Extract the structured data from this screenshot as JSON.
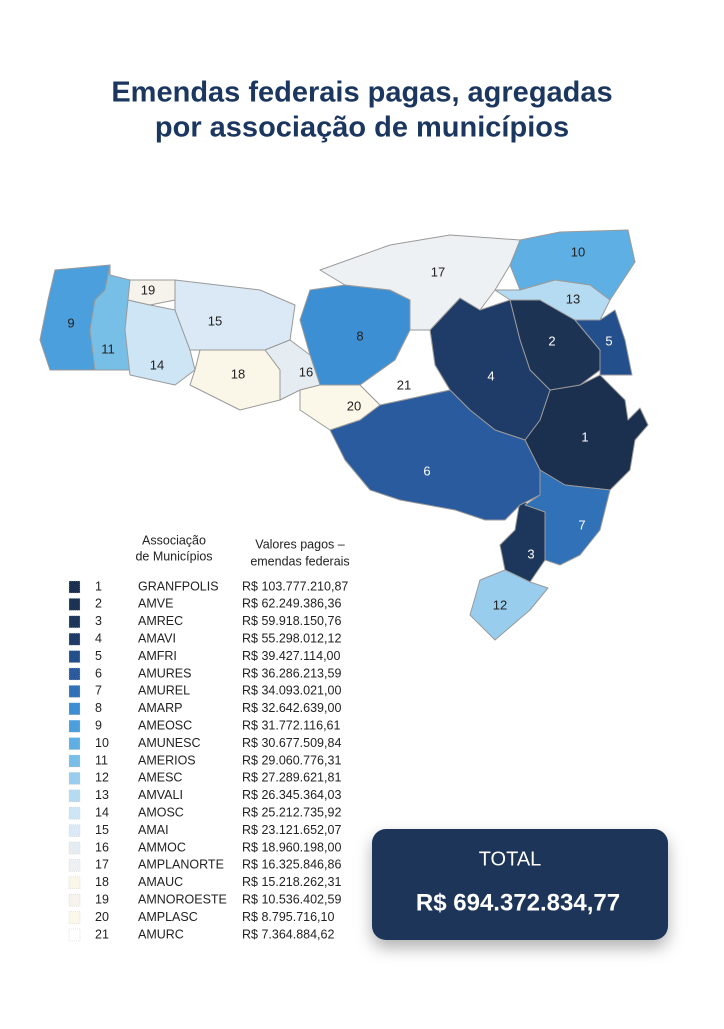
{
  "title": [
    "Emendas federais pagas, agregadas",
    "por associação de municípios"
  ],
  "table": {
    "headers": [
      [
        "Associação",
        "de Municípios"
      ],
      [
        "Valores pagos –",
        "emendas federais"
      ]
    ],
    "rows": [
      {
        "number": "1",
        "name": "GRANFPOLIS",
        "value": "R$ 103.777.210,87",
        "color": "#1b2f4e"
      },
      {
        "number": "2",
        "name": "AMVE",
        "value": "R$ 62.249.386,36",
        "color": "#1c3354"
      },
      {
        "number": "3",
        "name": "AMREC",
        "value": "R$ 59.918.150,76",
        "color": "#1d365b"
      },
      {
        "number": "4",
        "name": "AMAVI",
        "value": "R$ 55.298.012,12",
        "color": "#1f3b68"
      },
      {
        "number": "5",
        "name": "AMFRI",
        "value": "R$ 39.427.114,00",
        "color": "#244f8d"
      },
      {
        "number": "6",
        "name": "AMURES",
        "value": "R$ 36.286.213,59",
        "color": "#2a5b9e"
      },
      {
        "number": "7",
        "name": "AMUREL",
        "value": "R$ 34.093.021,00",
        "color": "#3071b8"
      },
      {
        "number": "8",
        "name": "AMARP",
        "value": "R$ 32.642.639,00",
        "color": "#3d8fd3"
      },
      {
        "number": "9",
        "name": "AMEOSC",
        "value": "R$ 31.772.116,61",
        "color": "#4a9fdc"
      },
      {
        "number": "10",
        "name": "AMUNESC",
        "value": "R$ 30.677.509,84",
        "color": "#5eb0e4"
      },
      {
        "number": "11",
        "name": "AMERIOS",
        "value": "R$ 29.060.776,31",
        "color": "#78bfe8"
      },
      {
        "number": "12",
        "name": "AMESC",
        "value": "R$ 27.289.621,81",
        "color": "#98cdee"
      },
      {
        "number": "13",
        "name": "AMVALI",
        "value": "R$ 26.345.364,03",
        "color": "#b5dbf2"
      },
      {
        "number": "14",
        "name": "AMOSC",
        "value": "R$ 25.212.735,92",
        "color": "#cde5f4"
      },
      {
        "number": "15",
        "name": "AMAI",
        "value": "R$ 23.121.652,07",
        "color": "#dae9f5"
      },
      {
        "number": "16",
        "name": "AMMOC",
        "value": "R$ 18.960.198,00",
        "color": "#e6edf2"
      },
      {
        "number": "17",
        "name": "AMPLANORTE",
        "value": "R$ 16.325.846,86",
        "color": "#eef1f3"
      },
      {
        "number": "18",
        "name": "AMAUC",
        "value": "R$ 15.218.262,31",
        "color": "#fbf7e8"
      },
      {
        "number": "19",
        "name": "AMNOROESTE",
        "value": "R$ 10.536.402,59",
        "color": "#f6f3ec"
      },
      {
        "number": "20",
        "name": "AMPLASC",
        "value": "R$ 8.795.716,10",
        "color": "#fbf8ea"
      },
      {
        "number": "21",
        "name": "AMURC",
        "value": "R$ 7.364.884,62",
        "color": "#ffffff"
      }
    ]
  },
  "total": {
    "label": "TOTAL",
    "value": "R$ 694.372.834,77"
  }
}
